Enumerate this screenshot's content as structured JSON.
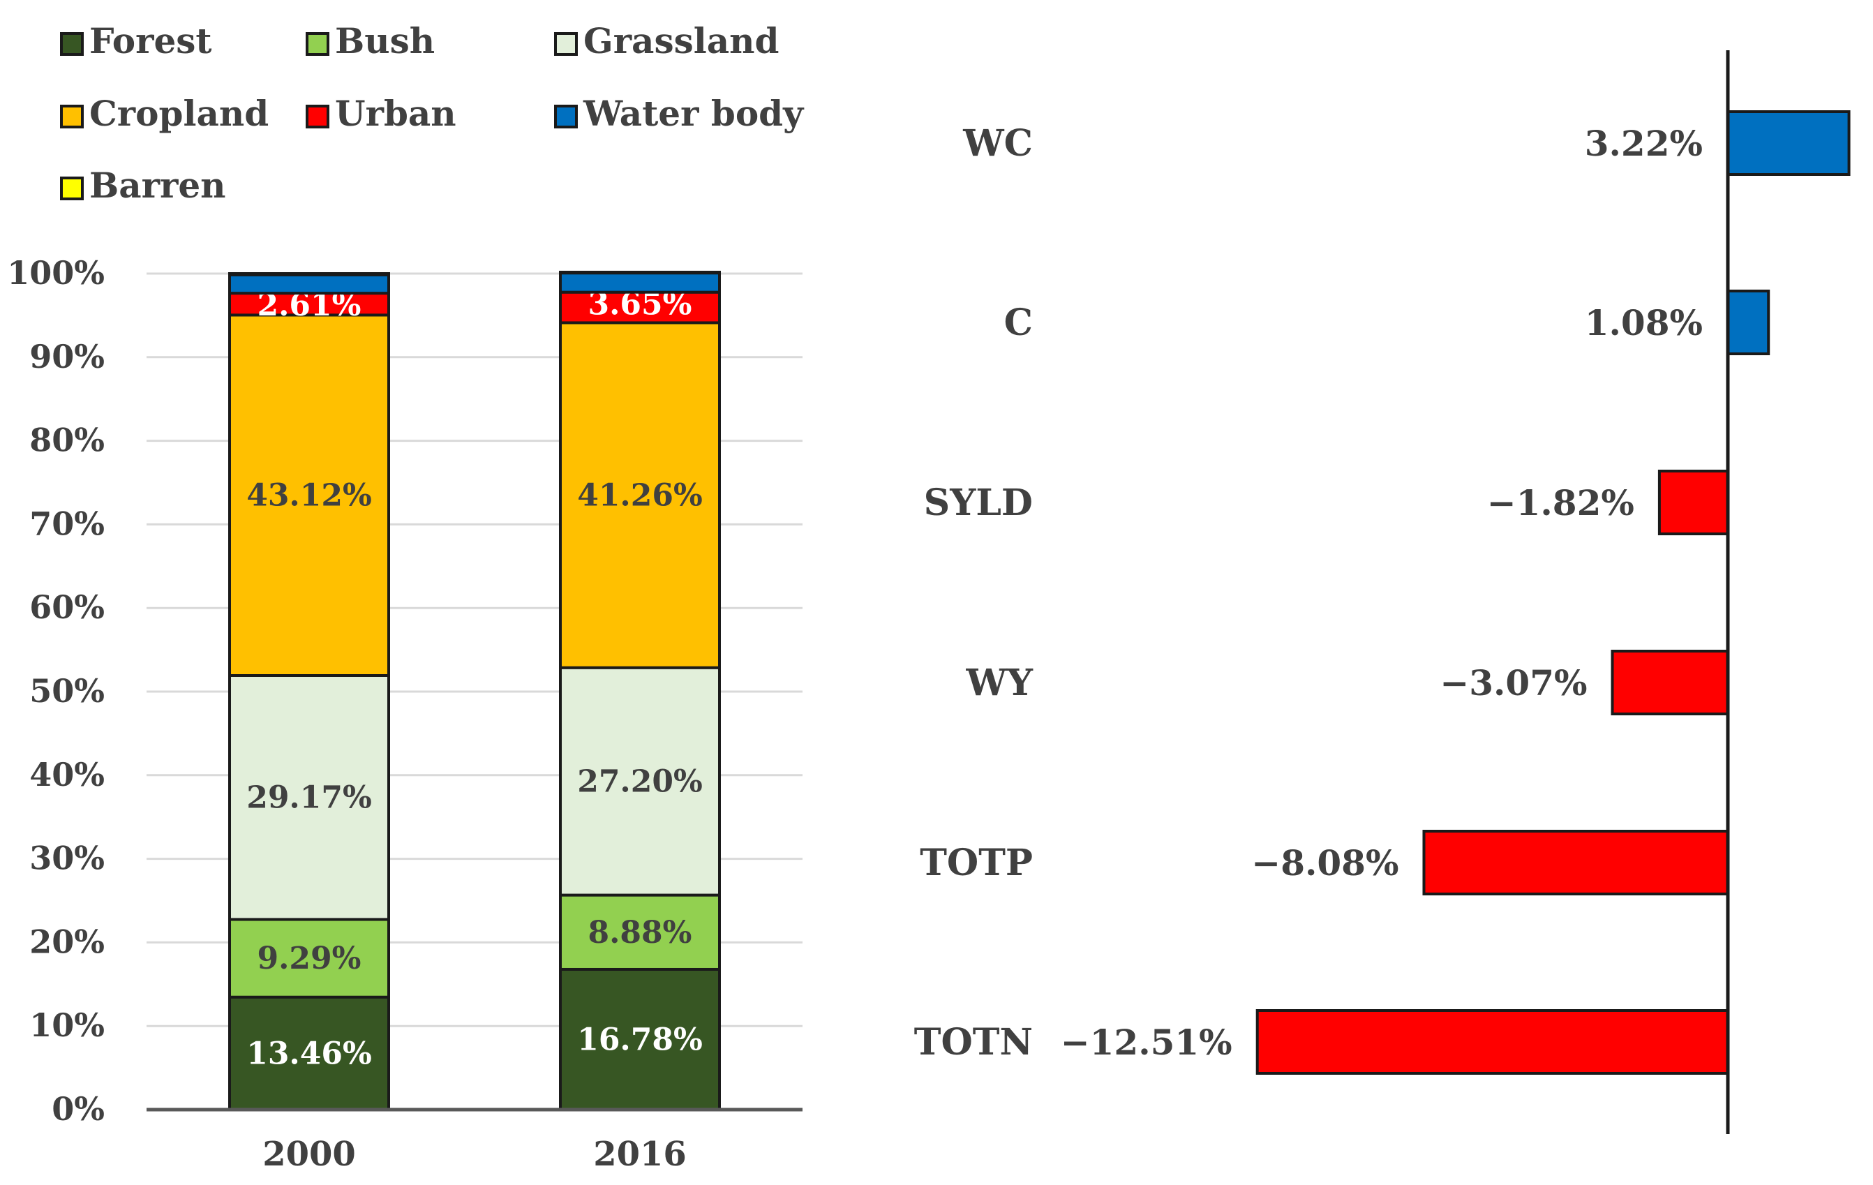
{
  "colors": {
    "Forest": "#375623",
    "Bush": "#92d050",
    "Grassland": "#e2efda",
    "Cropland": "#ffc000",
    "Urban": "#ff0000",
    "Water body": "#0070c0",
    "Barren": "#ffff00",
    "positive": "#0070c0",
    "negative": "#ff0000"
  },
  "chart_data": [
    {
      "type": "bar",
      "stacked": true,
      "title": "",
      "xlabel": "",
      "ylabel": "",
      "ylim": [
        0,
        100
      ],
      "yticks": [
        "0%",
        "10%",
        "20%",
        "30%",
        "40%",
        "50%",
        "60%",
        "70%",
        "80%",
        "90%",
        "100%"
      ],
      "legend": [
        "Forest",
        "Bush",
        "Grassland",
        "Cropland",
        "Urban",
        "Water body",
        "Barren"
      ],
      "categories": [
        "2000",
        "2016"
      ],
      "series": [
        {
          "name": "Forest",
          "values": [
            13.46,
            16.78
          ],
          "labels": [
            "13.46%",
            "16.78%"
          ]
        },
        {
          "name": "Bush",
          "values": [
            9.29,
            8.88
          ],
          "labels": [
            "9.29%",
            "8.88%"
          ]
        },
        {
          "name": "Grassland",
          "values": [
            29.17,
            27.2
          ],
          "labels": [
            "29.17%",
            "27.20%"
          ]
        },
        {
          "name": "Cropland",
          "values": [
            43.12,
            41.26
          ],
          "labels": [
            "43.12%",
            "41.26%"
          ]
        },
        {
          "name": "Urban",
          "values": [
            2.61,
            3.65
          ],
          "labels": [
            "2.61%",
            "3.65%"
          ]
        },
        {
          "name": "Water body",
          "values": [
            2.2,
            2.3
          ],
          "labels": [
            "",
            ""
          ]
        },
        {
          "name": "Barren",
          "values": [
            0.15,
            0.1
          ],
          "labels": [
            "",
            ""
          ]
        }
      ]
    },
    {
      "type": "bar",
      "orientation": "horizontal",
      "title": "",
      "categories": [
        "WC",
        "C",
        "SYLD",
        "WY",
        "TOTP",
        "TOTN"
      ],
      "values": [
        3.22,
        1.08,
        -1.82,
        -3.07,
        -8.08,
        -12.51
      ],
      "labels": [
        "3.22%",
        "1.08%",
        "−1.82%",
        "−3.07%",
        "−8.08%",
        "−12.51%"
      ],
      "xlim": [
        -13,
        3.5
      ]
    }
  ]
}
